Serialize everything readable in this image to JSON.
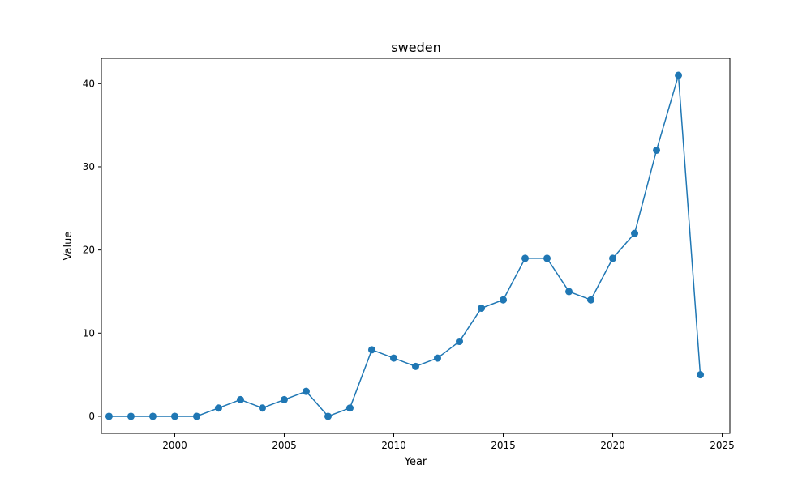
{
  "chart_data": {
    "type": "line",
    "title": "sweden",
    "xlabel": "Year",
    "ylabel": "Value",
    "xlim": [
      1996.65,
      2025.35
    ],
    "ylim": [
      -2.05,
      43.05
    ],
    "x_ticks": [
      2000,
      2005,
      2010,
      2015,
      2020,
      2025
    ],
    "y_ticks": [
      0,
      10,
      20,
      30,
      40
    ],
    "grid": false,
    "legend": "none",
    "line_color": "#1f77b4",
    "marker": "circle",
    "series": [
      {
        "x": [
          1997,
          1998,
          1999,
          2000,
          2001,
          2002,
          2003,
          2004,
          2005,
          2006,
          2007,
          2008,
          2009,
          2010,
          2011,
          2012,
          2013,
          2014,
          2015,
          2016,
          2017,
          2018,
          2019,
          2020,
          2021,
          2022,
          2023,
          2024
        ],
        "values": [
          0,
          0,
          0,
          0,
          0,
          1,
          2,
          1,
          2,
          3,
          0,
          1,
          8,
          7,
          6,
          7,
          9,
          13,
          14,
          19,
          19,
          15,
          14,
          19,
          22,
          32,
          41,
          5
        ]
      }
    ]
  }
}
